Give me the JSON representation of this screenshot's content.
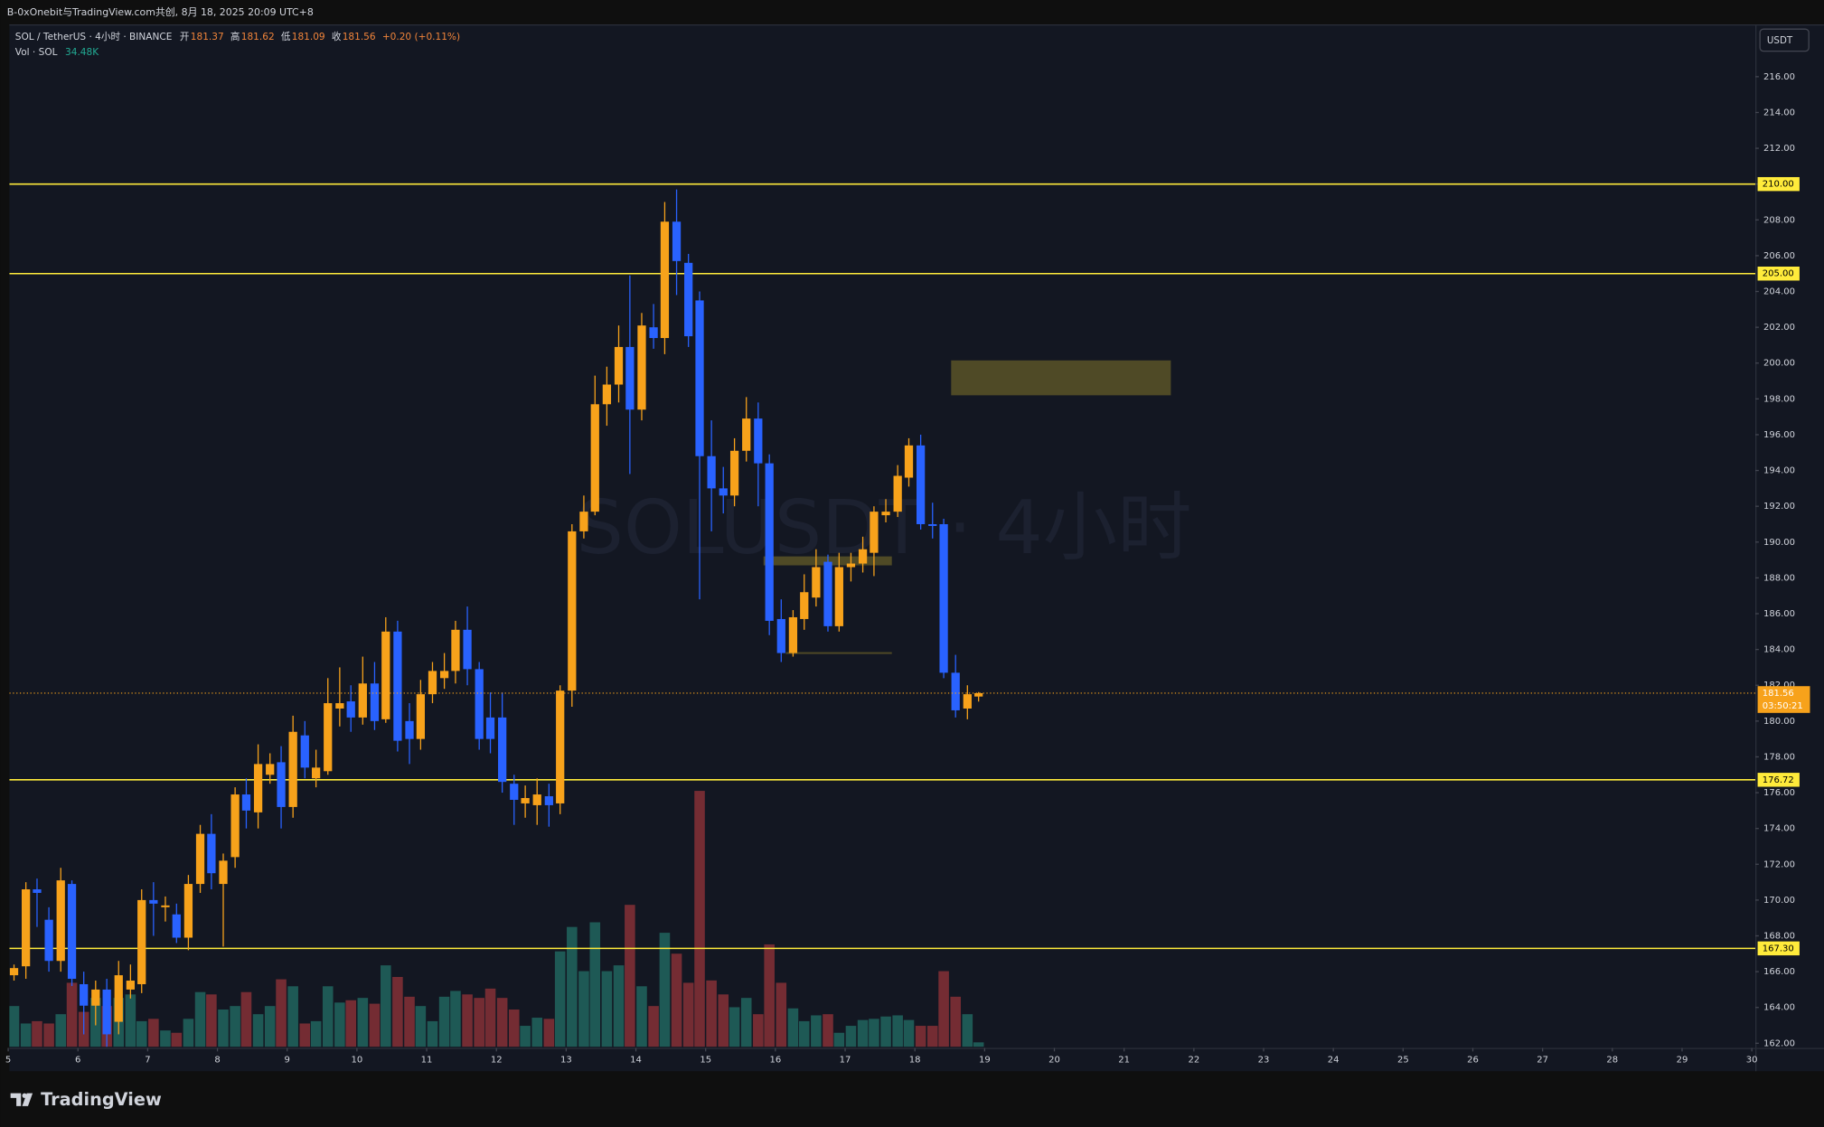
{
  "header": {
    "title": "B-0xOnebit与TradingView.com共创, 8月 18, 2025 20:09 UTC+8"
  },
  "chart_data": {
    "type": "candlestick",
    "symbol": "SOL / TetherUS · 4小时 · BINANCE",
    "legend_labels": [
      "开",
      "高",
      "低",
      "收"
    ],
    "change_label": "+0.20 (+0.11%)",
    "volume_title": "Vol · SOL",
    "volume_last_label": "34.48K",
    "watermark": "SOLUSDT · 4小时",
    "currency": "USDT",
    "countdown": "03:50:21",
    "up_color": "#f7a21b",
    "down_color": "#2962ff",
    "volume_up_color": "#1e5955",
    "volume_down_color": "#742c33",
    "level_color": "#ffeb3b",
    "zone_color": "#4f4a26",
    "x": [
      5,
      5.17,
      5.33,
      5.5,
      5.67,
      5.83,
      6,
      6.17,
      6.33,
      6.5,
      6.67,
      6.83,
      7,
      7.17,
      7.33,
      7.5,
      7.67,
      7.83,
      8,
      8.17,
      8.33,
      8.5,
      8.67,
      8.83,
      9,
      9.17,
      9.33,
      9.5,
      9.67,
      9.83,
      10,
      10.17,
      10.33,
      10.5,
      10.67,
      10.83,
      11,
      11.17,
      11.33,
      11.5,
      11.67,
      11.83,
      12,
      12.17,
      12.33,
      12.5,
      12.67,
      12.83,
      13,
      13.17,
      13.33,
      13.5,
      13.67,
      13.83,
      14,
      14.17,
      14.33,
      14.5,
      14.67,
      14.83,
      15,
      15.17,
      15.33,
      15.5,
      15.67,
      15.83,
      16,
      16.17,
      16.33,
      16.5,
      16.67,
      16.83,
      17,
      17.17,
      17.33,
      17.5,
      17.67,
      17.83,
      18,
      18.17,
      18.33,
      18.5,
      18.67,
      18.83
    ],
    "open": [
      165.8,
      166.3,
      170.6,
      168.9,
      166.6,
      170.9,
      165.3,
      164.1,
      165.0,
      163.2,
      165.0,
      165.3,
      170.0,
      169.6,
      169.2,
      167.9,
      170.9,
      173.7,
      170.9,
      172.4,
      175.9,
      174.9,
      177.0,
      177.7,
      175.2,
      179.2,
      176.8,
      177.2,
      180.7,
      181.1,
      180.2,
      182.1,
      180.1,
      185.0,
      180.0,
      179.0,
      181.5,
      182.4,
      182.8,
      185.1,
      182.9,
      180.2,
      180.2,
      176.5,
      175.4,
      175.3,
      175.8,
      175.4,
      181.7,
      190.6,
      191.7,
      197.7,
      198.8,
      200.9,
      197.4,
      202.0,
      201.4,
      207.9,
      205.6,
      203.5,
      194.8,
      193.0,
      192.6,
      195.1,
      196.9,
      194.4,
      185.7,
      183.8,
      185.7,
      186.9,
      188.9,
      185.3,
      188.6,
      188.8,
      189.4,
      191.5,
      191.7,
      193.6,
      195.4,
      191.0,
      191.0,
      182.7,
      180.7,
      181.37
    ],
    "high": [
      166.4,
      171.0,
      171.2,
      169.6,
      171.8,
      171.1,
      166.0,
      165.5,
      165.6,
      166.6,
      166.4,
      170.6,
      171.0,
      170.2,
      169.8,
      171.4,
      174.2,
      174.8,
      172.6,
      176.3,
      176.8,
      178.7,
      178.2,
      178.6,
      180.3,
      180.0,
      178.4,
      182.4,
      183.0,
      182.0,
      183.6,
      183.3,
      185.8,
      185.6,
      181.0,
      182.3,
      183.3,
      183.8,
      185.6,
      186.4,
      183.3,
      181.6,
      181.6,
      177.0,
      176.4,
      176.8,
      176.5,
      182.0,
      191.0,
      192.6,
      199.3,
      199.8,
      202.1,
      204.9,
      202.8,
      203.3,
      209.0,
      209.7,
      206.1,
      204.0,
      196.8,
      194.2,
      195.8,
      198.1,
      197.8,
      194.9,
      186.8,
      186.2,
      188.2,
      189.6,
      189.3,
      189.4,
      189.4,
      190.3,
      192.0,
      192.4,
      194.3,
      195.8,
      196.0,
      192.2,
      191.3,
      183.7,
      182.0,
      181.62
    ],
    "low": [
      165.5,
      165.6,
      168.5,
      166.0,
      166.0,
      165.2,
      162.5,
      163.0,
      161.8,
      162.5,
      164.5,
      164.8,
      168.0,
      168.8,
      167.6,
      167.2,
      170.4,
      170.6,
      167.4,
      171.8,
      174.0,
      174.0,
      176.5,
      174.0,
      174.6,
      176.8,
      176.3,
      177.0,
      179.7,
      179.4,
      179.8,
      179.5,
      179.9,
      178.3,
      177.6,
      178.4,
      181.0,
      181.8,
      182.1,
      182.0,
      178.4,
      178.2,
      176.0,
      174.2,
      174.6,
      174.2,
      174.1,
      174.8,
      180.8,
      190.2,
      191.5,
      196.5,
      197.8,
      193.8,
      196.8,
      200.8,
      200.5,
      203.8,
      200.9,
      186.8,
      190.6,
      191.6,
      192.0,
      194.5,
      192.0,
      184.8,
      183.3,
      183.6,
      185.1,
      186.4,
      185.0,
      185.0,
      187.8,
      188.3,
      188.1,
      191.1,
      191.4,
      193.1,
      190.7,
      190.2,
      182.4,
      180.2,
      180.1,
      181.09
    ],
    "close": [
      166.2,
      170.6,
      170.4,
      166.6,
      171.1,
      165.6,
      164.1,
      165.0,
      162.5,
      165.8,
      165.5,
      170.0,
      169.8,
      169.7,
      167.9,
      170.9,
      173.7,
      171.5,
      172.2,
      175.9,
      175.0,
      177.6,
      177.6,
      175.2,
      179.4,
      177.4,
      177.4,
      181.0,
      181.0,
      180.2,
      182.1,
      180.0,
      185.0,
      178.9,
      179.0,
      181.5,
      182.8,
      182.8,
      185.1,
      182.9,
      179.0,
      179.0,
      176.6,
      175.6,
      175.7,
      175.9,
      175.3,
      181.7,
      190.6,
      191.7,
      197.7,
      198.8,
      200.9,
      197.4,
      202.1,
      201.4,
      207.9,
      205.7,
      201.5,
      194.8,
      193.0,
      192.6,
      195.1,
      196.9,
      194.4,
      185.6,
      183.8,
      185.8,
      187.2,
      188.6,
      185.3,
      188.6,
      188.8,
      189.6,
      191.7,
      191.7,
      193.7,
      195.4,
      191.0,
      190.9,
      182.7,
      180.6,
      181.5,
      181.56
    ],
    "volume": [
      318500,
      182000,
      200200,
      182000,
      254800,
      500500,
      273000,
      382200,
      318500,
      382200,
      409500,
      200200,
      218400,
      127400,
      109200,
      218400,
      427700,
      409500,
      291200,
      318500,
      427700,
      254800,
      318500,
      527800,
      473200,
      182000,
      200200,
      473200,
      345800,
      364000,
      382200,
      336700,
      637000,
      546000,
      391300,
      318500,
      200200,
      391300,
      436800,
      409500,
      382200,
      455000,
      382200,
      291200,
      163800,
      227500,
      218400,
      746200,
      937300,
      591500,
      973700,
      591500,
      637000,
      1110200,
      473200,
      318500,
      891800,
      728000,
      500500,
      2002000,
      518700,
      409500,
      309400,
      382200,
      254800,
      800800,
      500500,
      300300,
      200200,
      245700,
      254800,
      109200,
      163800,
      209300,
      218400,
      236600,
      245700,
      209300,
      163800,
      163800,
      591500,
      391300,
      254800,
      34480
    ],
    "levels": [
      {
        "value": 210,
        "label": "210.00"
      },
      {
        "value": 205,
        "label": "205.00"
      },
      {
        "value": 176.72,
        "label": "176.72"
      },
      {
        "value": 167.3,
        "label": "167.30"
      }
    ],
    "zones": [
      {
        "x": [
          18.52,
          21.67
        ],
        "y": [
          198.2,
          200.15
        ]
      },
      {
        "x": [
          15.83,
          17.67
        ],
        "y": [
          188.7,
          189.2
        ]
      },
      {
        "x": [
          16.15,
          17.67
        ],
        "y": [
          183.75,
          183.85
        ]
      }
    ],
    "xlim": [
      5,
      30
    ],
    "xticks": [
      5,
      6,
      7,
      8,
      9,
      10,
      11,
      12,
      13,
      14,
      15,
      16,
      17,
      18,
      19,
      20,
      21,
      22,
      23,
      24,
      25,
      26,
      27,
      28,
      29,
      30
    ],
    "ylim": [
      161.74,
      218.92
    ],
    "yticks": [
      {
        "value": 162,
        "label": "162.00"
      },
      {
        "value": 164,
        "label": "164.00"
      },
      {
        "value": 166,
        "label": "166.00"
      },
      {
        "value": 168,
        "label": "168.00"
      },
      {
        "value": 170,
        "label": "170.00"
      },
      {
        "value": 172,
        "label": "172.00"
      },
      {
        "value": 174,
        "label": "174.00"
      },
      {
        "value": 176,
        "label": "176.00"
      },
      {
        "value": 178,
        "label": "178.00"
      },
      {
        "value": 180,
        "label": "180.00"
      },
      {
        "value": 182,
        "label": "182.00"
      },
      {
        "value": 184,
        "label": "184.00"
      },
      {
        "value": 186,
        "label": "186.00"
      },
      {
        "value": 188,
        "label": "188.00"
      },
      {
        "value": 190,
        "label": "190.00"
      },
      {
        "value": 192,
        "label": "192.00"
      },
      {
        "value": 194,
        "label": "194.00"
      },
      {
        "value": 196,
        "label": "196.00"
      },
      {
        "value": 198,
        "label": "198.00"
      },
      {
        "value": 200,
        "label": "200.00"
      },
      {
        "value": 202,
        "label": "202.00"
      },
      {
        "value": 204,
        "label": "204.00"
      },
      {
        "value": 206,
        "label": "206.00"
      },
      {
        "value": 208,
        "label": "208.00"
      },
      {
        "value": 210,
        "label": "210.00"
      },
      {
        "value": 212,
        "label": "212.00"
      },
      {
        "value": 214,
        "label": "214.00"
      },
      {
        "value": 216,
        "label": "216.00"
      }
    ]
  },
  "footer": {
    "brand": "TradingView"
  }
}
